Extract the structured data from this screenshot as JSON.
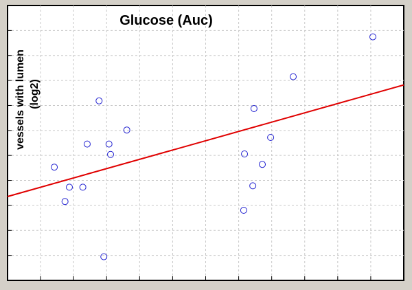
{
  "chart_data": {
    "type": "scatter",
    "title": "Glucose (Auc)",
    "ylabel_lines": [
      "vessels with lumen",
      "(log2)"
    ],
    "xlabel": "",
    "xlim": [
      0,
      100
    ],
    "ylim": [
      0,
      100
    ],
    "grid": true,
    "legend": "none",
    "colors": {
      "points": "#2020d0",
      "fit_line": "#e00000",
      "background": "#d4d0c8",
      "plot_bg": "#ffffff"
    },
    "points": [
      {
        "x": 11.8,
        "y": 41.2
      },
      {
        "x": 14.5,
        "y": 28.7
      },
      {
        "x": 15.6,
        "y": 33.9
      },
      {
        "x": 19.0,
        "y": 33.9
      },
      {
        "x": 20.1,
        "y": 49.6
      },
      {
        "x": 23.1,
        "y": 65.3
      },
      {
        "x": 24.3,
        "y": 8.6
      },
      {
        "x": 25.6,
        "y": 49.6
      },
      {
        "x": 26.0,
        "y": 45.8
      },
      {
        "x": 30.1,
        "y": 54.7
      },
      {
        "x": 59.8,
        "y": 46.0
      },
      {
        "x": 61.9,
        "y": 34.4
      },
      {
        "x": 62.2,
        "y": 62.5
      },
      {
        "x": 64.3,
        "y": 42.2
      },
      {
        "x": 66.4,
        "y": 52.0
      },
      {
        "x": 72.1,
        "y": 74.1
      },
      {
        "x": 59.6,
        "y": 25.5
      },
      {
        "x": 92.2,
        "y": 88.6
      }
    ],
    "fit_line": {
      "x": [
        0,
        100
      ],
      "y": [
        30.5,
        71.1
      ]
    }
  }
}
